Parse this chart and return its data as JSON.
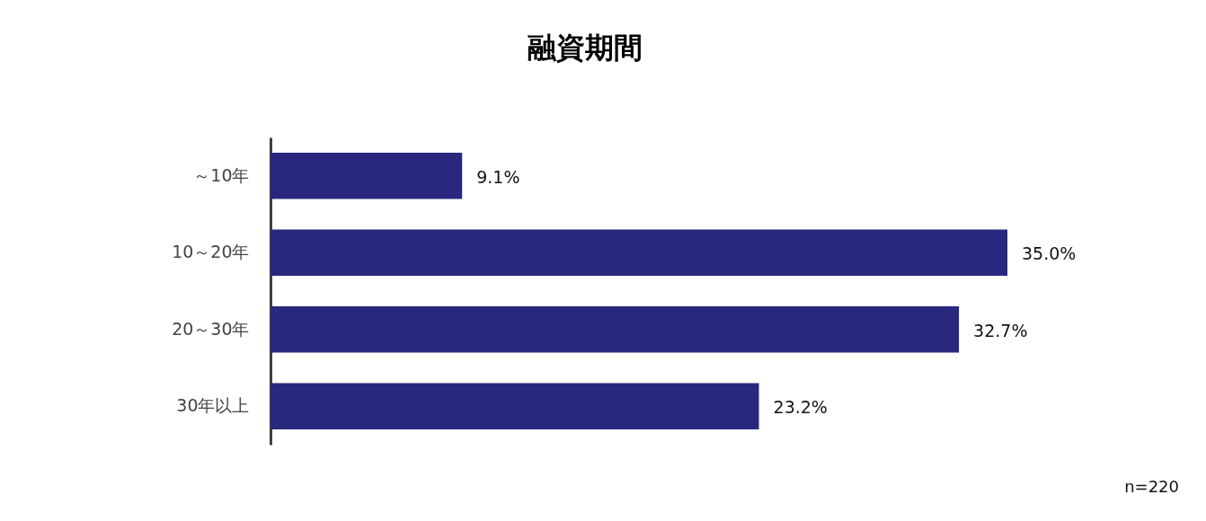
{
  "chart_data": {
    "type": "bar",
    "title": "融資期間",
    "orientation": "horizontal",
    "categories": [
      "～10年",
      "10～20年",
      "20～30年",
      "30年以上"
    ],
    "values": [
      9.1,
      35.0,
      32.7,
      23.2
    ],
    "color": "#28287e",
    "value_labels": [
      "9.1%",
      "35.0%",
      "32.7%",
      "23.2%"
    ],
    "grid": false,
    "annotations": [
      "n=220"
    ]
  }
}
